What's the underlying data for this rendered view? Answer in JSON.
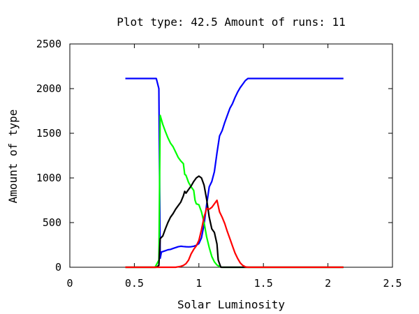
{
  "chart_data": {
    "type": "line",
    "title": "Plot type: 42.5 Amount of runs: 11",
    "xlabel": "Solar Luminosity",
    "ylabel": "Amount of type",
    "xlim": [
      0,
      2.5
    ],
    "ylim": [
      0,
      2500
    ],
    "xticks": [
      0,
      0.5,
      1,
      1.5,
      2,
      2.5
    ],
    "xtick_labels": [
      "0",
      "0.5",
      "1",
      "1.5",
      "2",
      "2.5"
    ],
    "yticks": [
      0,
      500,
      1000,
      1500,
      2000,
      2500
    ],
    "ytick_labels": [
      "0",
      "500",
      "1000",
      "1500",
      "2000",
      "2500"
    ],
    "grid": false,
    "legend": "none",
    "series": [
      {
        "color": "#0000ff",
        "points": [
          [
            0.43,
            2113
          ],
          [
            0.67,
            2113
          ],
          [
            0.69,
            2000
          ],
          [
            0.7,
            100
          ],
          [
            0.71,
            170
          ],
          [
            0.74,
            185
          ],
          [
            0.76,
            195
          ],
          [
            0.78,
            200
          ],
          [
            0.8,
            210
          ],
          [
            0.82,
            220
          ],
          [
            0.84,
            230
          ],
          [
            0.86,
            235
          ],
          [
            0.88,
            232
          ],
          [
            0.9,
            230
          ],
          [
            0.92,
            228
          ],
          [
            0.94,
            230
          ],
          [
            0.96,
            235
          ],
          [
            0.98,
            245
          ],
          [
            1.0,
            265
          ],
          [
            1.02,
            330
          ],
          [
            1.04,
            480
          ],
          [
            1.06,
            700
          ],
          [
            1.08,
            900
          ],
          [
            1.1,
            960
          ],
          [
            1.12,
            1070
          ],
          [
            1.14,
            1280
          ],
          [
            1.16,
            1470
          ],
          [
            1.18,
            1530
          ],
          [
            1.2,
            1620
          ],
          [
            1.22,
            1700
          ],
          [
            1.24,
            1780
          ],
          [
            1.26,
            1830
          ],
          [
            1.28,
            1900
          ],
          [
            1.3,
            1960
          ],
          [
            1.32,
            2010
          ],
          [
            1.34,
            2050
          ],
          [
            1.36,
            2090
          ],
          [
            1.38,
            2113
          ],
          [
            2.12,
            2113
          ]
        ]
      },
      {
        "color": "#00ff00",
        "points": [
          [
            0.43,
            0
          ],
          [
            0.66,
            0
          ],
          [
            0.69,
            80
          ],
          [
            0.7,
            1700
          ],
          [
            0.72,
            1600
          ],
          [
            0.74,
            1520
          ],
          [
            0.76,
            1450
          ],
          [
            0.78,
            1390
          ],
          [
            0.8,
            1350
          ],
          [
            0.82,
            1290
          ],
          [
            0.84,
            1230
          ],
          [
            0.86,
            1190
          ],
          [
            0.88,
            1160
          ],
          [
            0.89,
            1040
          ],
          [
            0.9,
            1030
          ],
          [
            0.92,
            950
          ],
          [
            0.94,
            900
          ],
          [
            0.96,
            860
          ],
          [
            0.97,
            750
          ],
          [
            0.98,
            710
          ],
          [
            1.0,
            700
          ],
          [
            1.02,
            620
          ],
          [
            1.04,
            500
          ],
          [
            1.06,
            340
          ],
          [
            1.08,
            220
          ],
          [
            1.1,
            120
          ],
          [
            1.12,
            60
          ],
          [
            1.14,
            25
          ],
          [
            1.16,
            8
          ],
          [
            1.18,
            0
          ],
          [
            2.12,
            0
          ]
        ]
      },
      {
        "color": "#000000",
        "points": [
          [
            0.43,
            0
          ],
          [
            0.67,
            0
          ],
          [
            0.69,
            20
          ],
          [
            0.7,
            320
          ],
          [
            0.72,
            350
          ],
          [
            0.74,
            430
          ],
          [
            0.76,
            500
          ],
          [
            0.78,
            560
          ],
          [
            0.8,
            600
          ],
          [
            0.82,
            650
          ],
          [
            0.84,
            690
          ],
          [
            0.86,
            730
          ],
          [
            0.88,
            800
          ],
          [
            0.89,
            850
          ],
          [
            0.9,
            830
          ],
          [
            0.92,
            870
          ],
          [
            0.94,
            910
          ],
          [
            0.96,
            960
          ],
          [
            0.98,
            1000
          ],
          [
            1.0,
            1020
          ],
          [
            1.02,
            1000
          ],
          [
            1.04,
            920
          ],
          [
            1.06,
            760
          ],
          [
            1.08,
            560
          ],
          [
            1.1,
            430
          ],
          [
            1.12,
            390
          ],
          [
            1.14,
            260
          ],
          [
            1.15,
            80
          ],
          [
            1.17,
            0
          ],
          [
            2.12,
            0
          ]
        ]
      },
      {
        "color": "#ff0000",
        "points": [
          [
            0.43,
            0
          ],
          [
            0.82,
            0
          ],
          [
            0.86,
            10
          ],
          [
            0.88,
            20
          ],
          [
            0.9,
            40
          ],
          [
            0.92,
            80
          ],
          [
            0.94,
            150
          ],
          [
            0.96,
            200
          ],
          [
            0.98,
            240
          ],
          [
            1.0,
            300
          ],
          [
            1.02,
            420
          ],
          [
            1.04,
            560
          ],
          [
            1.06,
            660
          ],
          [
            1.08,
            650
          ],
          [
            1.1,
            670
          ],
          [
            1.12,
            710
          ],
          [
            1.14,
            750
          ],
          [
            1.16,
            620
          ],
          [
            1.18,
            560
          ],
          [
            1.2,
            490
          ],
          [
            1.22,
            400
          ],
          [
            1.24,
            320
          ],
          [
            1.26,
            240
          ],
          [
            1.28,
            160
          ],
          [
            1.3,
            100
          ],
          [
            1.32,
            50
          ],
          [
            1.34,
            20
          ],
          [
            1.36,
            5
          ],
          [
            1.38,
            0
          ],
          [
            2.12,
            0
          ]
        ]
      }
    ]
  }
}
